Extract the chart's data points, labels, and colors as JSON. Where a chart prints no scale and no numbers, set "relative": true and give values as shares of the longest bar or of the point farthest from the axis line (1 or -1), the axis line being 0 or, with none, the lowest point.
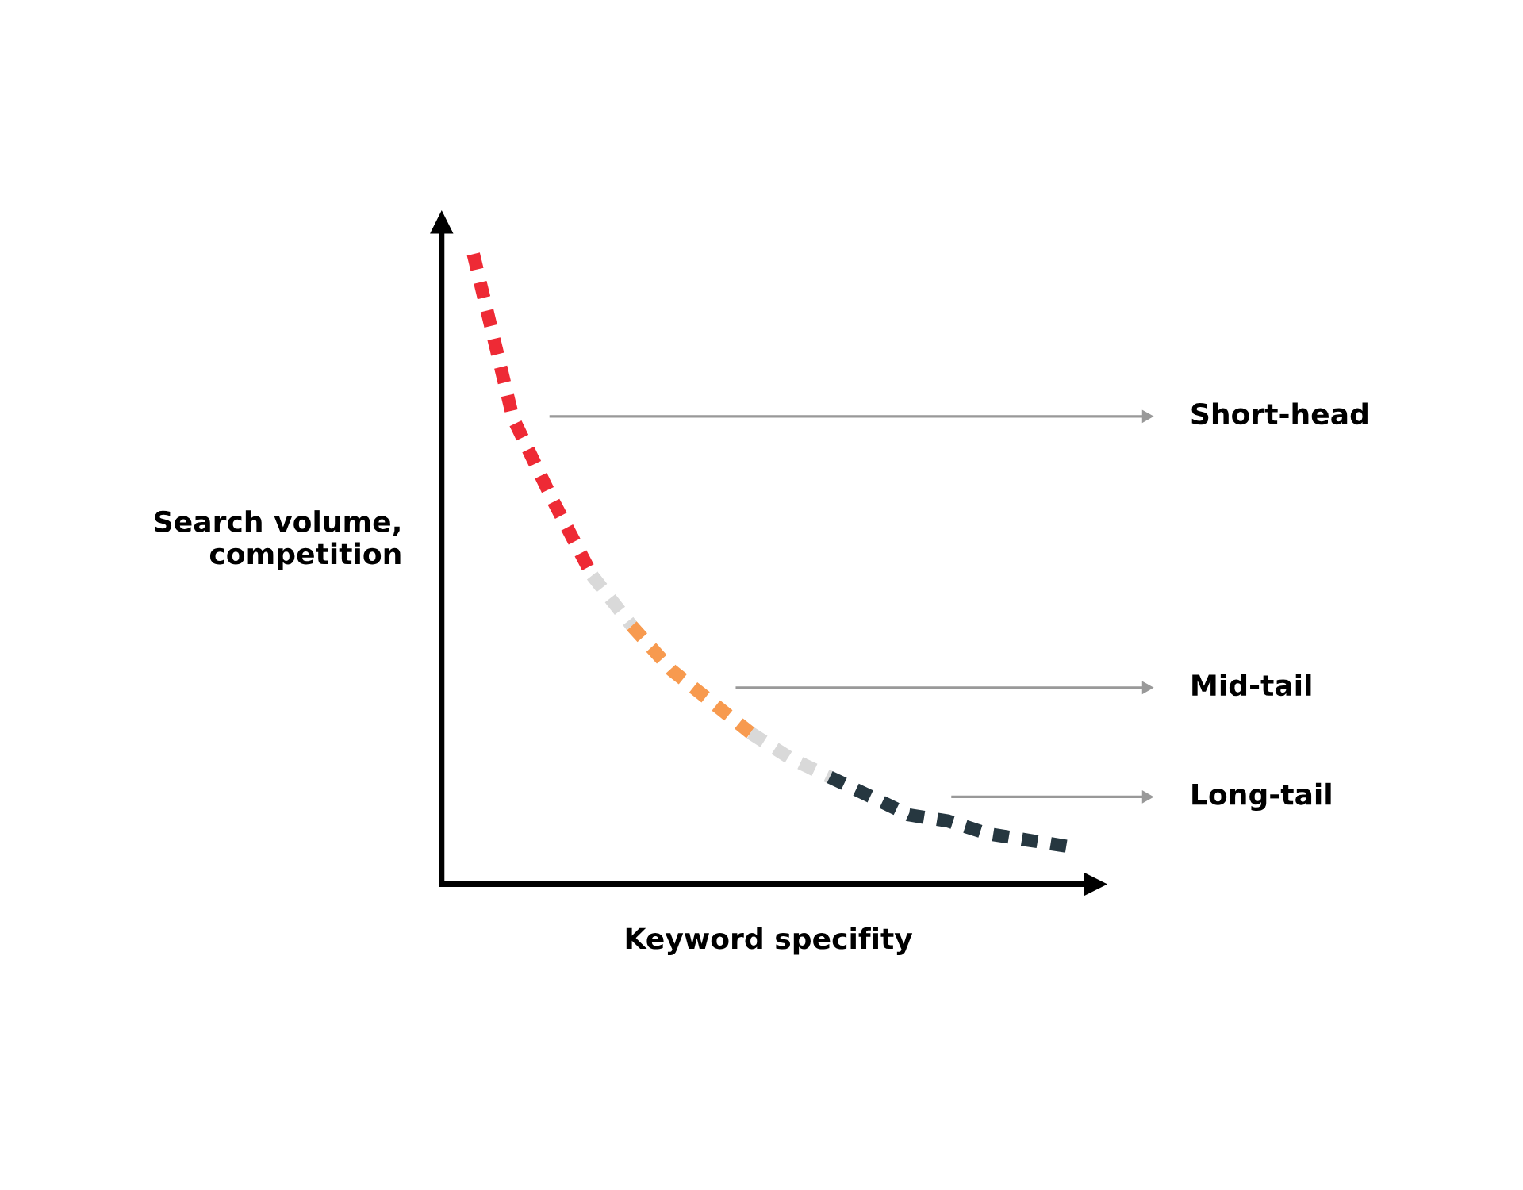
{
  "chart_data": {
    "type": "line",
    "relative": true,
    "xlabel": "Keyword specifity",
    "ylabel": "Search volume,\ncompetition",
    "categories": [
      null,
      null,
      null,
      null,
      null,
      null,
      null,
      null,
      null,
      null,
      null,
      null,
      null,
      null,
      null,
      null
    ],
    "line_style": "dashed",
    "marker": "none",
    "grid": false,
    "legend": false,
    "series": [
      {
        "color": "#ee2a35",
        "values": [
          1.0,
          0.74,
          0.61,
          0.49,
          null,
          null,
          null,
          null,
          null,
          null,
          null,
          null,
          null,
          null,
          null,
          null
        ]
      },
      {
        "color": "#d9d9d9",
        "values": [
          null,
          null,
          null,
          0.49,
          0.41,
          null,
          null,
          null,
          null,
          null,
          null,
          null,
          null,
          null,
          null,
          null
        ]
      },
      {
        "color": "#f79a4f",
        "values": [
          null,
          null,
          null,
          null,
          0.41,
          0.34,
          0.29,
          0.24,
          null,
          null,
          null,
          null,
          null,
          null,
          null,
          null
        ]
      },
      {
        "color": "#d9d9d9",
        "values": [
          null,
          null,
          null,
          null,
          null,
          null,
          null,
          0.24,
          0.2,
          0.17,
          null,
          null,
          null,
          null,
          null,
          null
        ]
      },
      {
        "color": "#263740",
        "values": [
          null,
          null,
          null,
          null,
          null,
          null,
          null,
          null,
          null,
          0.17,
          0.14,
          0.11,
          0.1,
          0.08,
          0.07,
          0.06
        ]
      }
    ],
    "annotations": [
      "Short-head",
      "Mid-tail",
      "Long-tail"
    ]
  }
}
